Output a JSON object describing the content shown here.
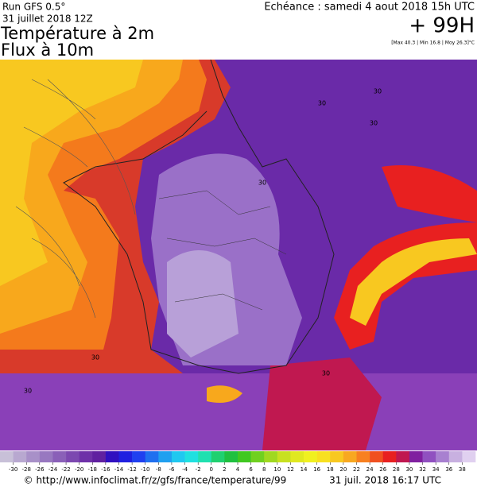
{
  "header": {
    "run": "Run GFS 0.5°",
    "run_date": "31 juillet 2018 12Z",
    "title": "Température à 2m",
    "subtitle": "Flux à 10m",
    "echeance": "Echéance : samedi 4 aout 2018 15h UTC",
    "lead": "+ 99H",
    "stats": "[Max 40.3 | Min 16.8 | Moy 26.3]°C"
  },
  "map": {
    "contour_labels": [
      "30",
      "30",
      "30",
      "30",
      "30",
      "30",
      "30"
    ]
  },
  "colorbar": {
    "ticks": [
      -30,
      -28,
      -26,
      -24,
      -22,
      -20,
      -18,
      -16,
      -14,
      -12,
      -10,
      -8,
      -6,
      -4,
      -2,
      0,
      2,
      4,
      6,
      8,
      10,
      12,
      14,
      16,
      18,
      20,
      22,
      24,
      26,
      28,
      30,
      32,
      34,
      36,
      38
    ],
    "colors": [
      "#c8c0d8",
      "#b8a8d0",
      "#a890c8",
      "#9878c0",
      "#8a60b8",
      "#7c48b0",
      "#6e30a8",
      "#6020a0",
      "#3010c0",
      "#2020e0",
      "#2040f0",
      "#2070f0",
      "#20a0f0",
      "#20c8f0",
      "#20e0e0",
      "#20e0b0",
      "#20d070",
      "#20c040",
      "#40c820",
      "#70d020",
      "#a0d820",
      "#c8e020",
      "#e0e820",
      "#f0f020",
      "#f8e020",
      "#f8c820",
      "#f8a820",
      "#f88020",
      "#f05020",
      "#e82020",
      "#c01850",
      "#8020a0",
      "#9050c0",
      "#a880d0",
      "#c8b0e0",
      "#e0d0f0"
    ]
  },
  "footer": {
    "url": "© http://www.infoclimat.fr/z/gfs/france/temperature/99",
    "timestamp": "31 juil. 2018 16:17 UTC"
  }
}
